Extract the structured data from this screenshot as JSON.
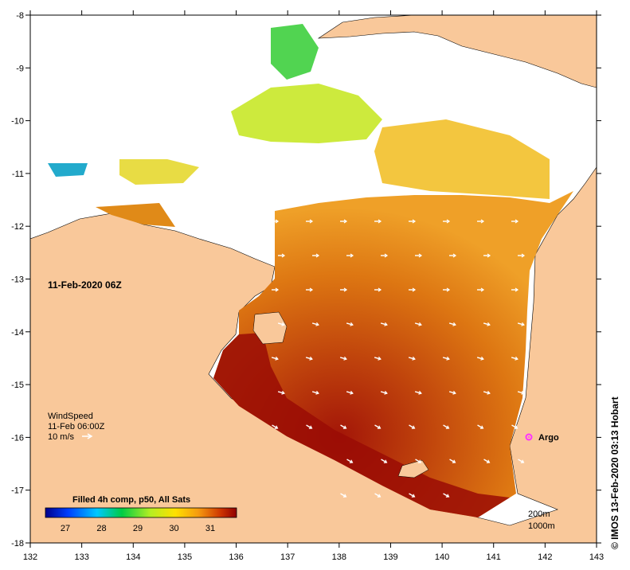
{
  "date_label": "11-Feb-2020 06Z",
  "wind": {
    "title": "WindSpeed",
    "time": "11-Feb 06:00Z",
    "scale": "10 m/s"
  },
  "argo_label": "Argo",
  "colorbar": {
    "title": "Filled 4h comp, p50, All Sats",
    "ticks": [
      "27",
      "28",
      "29",
      "30",
      "31"
    ]
  },
  "depth_labels": [
    "200m",
    "1000m"
  ],
  "credit": "© IMOS 13-Feb-2020 03:13 Hobart",
  "axes": {
    "x_ticks": [
      "132",
      "133",
      "134",
      "135",
      "136",
      "137",
      "138",
      "139",
      "140",
      "141",
      "142",
      "143"
    ],
    "y_ticks": [
      "-8",
      "-9",
      "-10",
      "-11",
      "-12",
      "-13",
      "-14",
      "-15",
      "-16",
      "-17",
      "-18"
    ]
  },
  "colors": {
    "land": "#f9c89a",
    "sst_hot": "#9a0c05",
    "sst_warm": "#d96b0e",
    "sst_mid": "#f2a52a",
    "sst_cool": "#b3e82a",
    "sst_green": "#33cc33",
    "argo": "#ff33ff"
  }
}
